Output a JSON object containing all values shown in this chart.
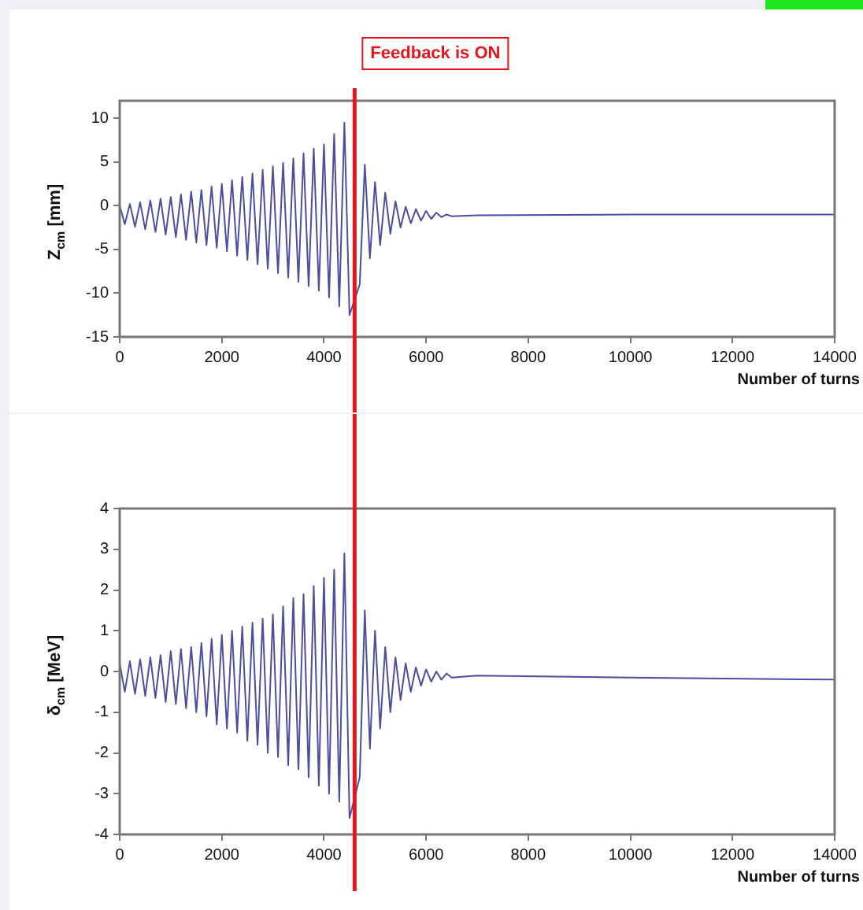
{
  "chart_data": [
    {
      "type": "line",
      "ylabel": "Z$_{cm}$  [mm]",
      "xlabel": "Number of turns",
      "xlim": [
        0,
        14000
      ],
      "xticks": [
        0,
        2000,
        4000,
        6000,
        8000,
        10000,
        12000,
        14000
      ],
      "ylim": [
        -15,
        12
      ],
      "yticks": [
        -15,
        -10,
        -5,
        0,
        5,
        10
      ],
      "grid": false,
      "legend": false,
      "marker": "none",
      "ref_lines": [
        {
          "axis": "x",
          "value": 4600,
          "label": "Feedback is ON",
          "color": "#e8141c"
        }
      ],
      "series": [
        {
          "color": "#4a4fa0",
          "x": [
            0,
            100,
            200,
            300,
            400,
            500,
            600,
            700,
            800,
            900,
            1000,
            1100,
            1200,
            1300,
            1400,
            1500,
            1600,
            1700,
            1800,
            1900,
            2000,
            2100,
            2200,
            2300,
            2400,
            2500,
            2600,
            2700,
            2800,
            2900,
            3000,
            3100,
            3200,
            3300,
            3400,
            3500,
            3600,
            3700,
            3800,
            3900,
            4000,
            4100,
            4200,
            4300,
            4400,
            4500,
            4600,
            4700,
            4800,
            4900,
            5000,
            5100,
            5200,
            5300,
            5400,
            5500,
            5600,
            5700,
            5800,
            5900,
            6000,
            6100,
            6200,
            6300,
            6400,
            6500,
            7000,
            10000,
            14000
          ],
          "values": [
            0,
            -2.1,
            0.2,
            -2.4,
            0.4,
            -2.7,
            0.6,
            -3.0,
            0.8,
            -3.3,
            1.0,
            -3.6,
            1.3,
            -3.9,
            1.6,
            -4.2,
            1.8,
            -4.5,
            2.2,
            -4.8,
            2.5,
            -5.2,
            2.9,
            -5.7,
            3.3,
            -6.2,
            3.7,
            -6.7,
            4.1,
            -7.2,
            4.5,
            -7.7,
            4.9,
            -8.2,
            5.4,
            -8.7,
            6.0,
            -9.2,
            6.5,
            -9.7,
            7.0,
            -10.5,
            8.2,
            -11.5,
            9.5,
            -12.5,
            null,
            -9.0,
            4.7,
            -6.0,
            2.7,
            -4.5,
            1.5,
            -3.2,
            0.5,
            -2.5,
            -0.1,
            -2.0,
            -0.4,
            -1.7,
            -0.6,
            -1.5,
            -0.8,
            -1.3,
            -1.0,
            -1.2,
            -1.1,
            -1.0,
            -1.0
          ]
        }
      ]
    },
    {
      "type": "line",
      "ylabel": "δ$_{cm}$  [MeV]",
      "xlabel": "Number of turns",
      "xlim": [
        0,
        14000
      ],
      "xticks": [
        0,
        2000,
        4000,
        6000,
        8000,
        10000,
        12000,
        14000
      ],
      "ylim": [
        -4,
        4
      ],
      "yticks": [
        -4,
        -3,
        -2,
        -1,
        0,
        1,
        2,
        3,
        4
      ],
      "grid": false,
      "legend": false,
      "marker": "none",
      "ref_lines": [
        {
          "axis": "x",
          "value": 4600,
          "color": "#e8141c"
        }
      ],
      "series": [
        {
          "color": "#4a4fa0",
          "x": [
            0,
            100,
            200,
            300,
            400,
            500,
            600,
            700,
            800,
            900,
            1000,
            1100,
            1200,
            1300,
            1400,
            1500,
            1600,
            1700,
            1800,
            1900,
            2000,
            2100,
            2200,
            2300,
            2400,
            2500,
            2600,
            2700,
            2800,
            2900,
            3000,
            3100,
            3200,
            3300,
            3400,
            3500,
            3600,
            3700,
            3800,
            3900,
            4000,
            4100,
            4200,
            4300,
            4400,
            4500,
            4600,
            4700,
            4800,
            4900,
            5000,
            5100,
            5200,
            5300,
            5400,
            5500,
            5600,
            5700,
            5800,
            5900,
            6000,
            6100,
            6200,
            6300,
            6400,
            6500,
            7000,
            10000,
            14000
          ],
          "values": [
            0.2,
            -0.5,
            0.25,
            -0.55,
            0.3,
            -0.6,
            0.35,
            -0.65,
            0.4,
            -0.75,
            0.5,
            -0.8,
            0.55,
            -0.9,
            0.6,
            -1.0,
            0.7,
            -1.1,
            0.8,
            -1.3,
            0.9,
            -1.4,
            1.0,
            -1.5,
            1.1,
            -1.7,
            1.2,
            -1.8,
            1.3,
            -2.0,
            1.4,
            -2.1,
            1.6,
            -2.3,
            1.8,
            -2.4,
            1.9,
            -2.6,
            2.1,
            -2.8,
            2.3,
            -3.0,
            2.5,
            -3.2,
            2.9,
            -3.6,
            null,
            -2.6,
            1.5,
            -1.9,
            1.0,
            -1.4,
            0.6,
            -1.0,
            0.35,
            -0.7,
            0.2,
            -0.5,
            0.1,
            -0.35,
            0.05,
            -0.25,
            0,
            -0.2,
            -0.05,
            -0.15,
            -0.1,
            -0.15,
            -0.2
          ]
        }
      ]
    }
  ]
}
